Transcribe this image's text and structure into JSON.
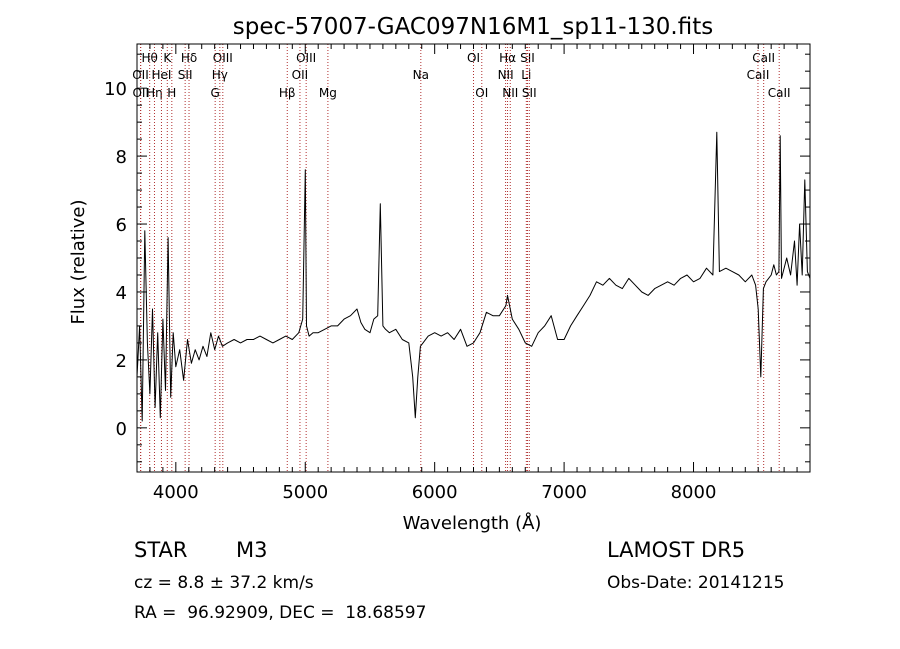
{
  "chart_data": {
    "type": "line",
    "title": "spec-57007-GAC097N16M1_sp11-130.fits",
    "xlabel": "Wavelength (Å)",
    "ylabel": "Flux (relative)",
    "xlim": [
      3700,
      8900
    ],
    "ylim": [
      -1.3,
      11.3
    ],
    "x_ticks": [
      4000,
      5000,
      6000,
      7000,
      8000
    ],
    "y_ticks": [
      0,
      2,
      4,
      6,
      8,
      10
    ],
    "grid": false,
    "spectrum": {
      "x": [
        3700,
        3720,
        3740,
        3760,
        3780,
        3800,
        3820,
        3840,
        3860,
        3880,
        3900,
        3920,
        3940,
        3960,
        3980,
        4000,
        4030,
        4060,
        4090,
        4120,
        4150,
        4180,
        4210,
        4240,
        4270,
        4300,
        4330,
        4360,
        4400,
        4450,
        4500,
        4550,
        4600,
        4650,
        4700,
        4750,
        4800,
        4850,
        4900,
        4950,
        4980,
        5000,
        5010,
        5030,
        5060,
        5100,
        5150,
        5200,
        5250,
        5300,
        5350,
        5400,
        5430,
        5460,
        5500,
        5530,
        5560,
        5580,
        5600,
        5620,
        5650,
        5700,
        5750,
        5800,
        5830,
        5850,
        5870,
        5890,
        5910,
        5950,
        6000,
        6050,
        6100,
        6150,
        6200,
        6250,
        6300,
        6350,
        6400,
        6450,
        6500,
        6550,
        6563,
        6600,
        6650,
        6700,
        6750,
        6800,
        6850,
        6900,
        6950,
        7000,
        7050,
        7100,
        7150,
        7200,
        7250,
        7300,
        7350,
        7400,
        7450,
        7500,
        7550,
        7600,
        7650,
        7700,
        7750,
        7800,
        7850,
        7900,
        7950,
        8000,
        8050,
        8100,
        8150,
        8180,
        8200,
        8250,
        8300,
        8350,
        8400,
        8450,
        8480,
        8500,
        8520,
        8540,
        8560,
        8600,
        8620,
        8640,
        8660,
        8670,
        8680,
        8700,
        8720,
        8750,
        8780,
        8800,
        8820,
        8840,
        8860,
        8880,
        8900
      ],
      "y": [
        1.5,
        3.0,
        0.2,
        5.8,
        2.5,
        1.0,
        3.5,
        0.6,
        2.8,
        0.3,
        3.2,
        1.1,
        5.6,
        0.9,
        2.8,
        1.8,
        2.3,
        1.4,
        2.6,
        1.9,
        2.3,
        2.0,
        2.4,
        2.1,
        2.8,
        2.3,
        2.7,
        2.4,
        2.5,
        2.6,
        2.5,
        2.6,
        2.6,
        2.7,
        2.6,
        2.5,
        2.6,
        2.7,
        2.6,
        2.8,
        3.2,
        7.6,
        3.0,
        2.7,
        2.8,
        2.8,
        2.9,
        3.0,
        3.0,
        3.2,
        3.3,
        3.5,
        3.1,
        2.9,
        2.8,
        3.2,
        3.3,
        6.6,
        3.0,
        2.9,
        2.8,
        2.9,
        2.6,
        2.5,
        1.5,
        0.3,
        1.5,
        2.4,
        2.5,
        2.7,
        2.8,
        2.7,
        2.8,
        2.6,
        2.9,
        2.4,
        2.5,
        2.8,
        3.4,
        3.3,
        3.3,
        3.6,
        3.9,
        3.2,
        2.9,
        2.5,
        2.4,
        2.8,
        3.0,
        3.3,
        2.6,
        2.6,
        3.0,
        3.3,
        3.6,
        3.9,
        4.3,
        4.2,
        4.4,
        4.2,
        4.1,
        4.4,
        4.2,
        4.0,
        3.9,
        4.1,
        4.2,
        4.3,
        4.2,
        4.4,
        4.5,
        4.3,
        4.4,
        4.7,
        4.5,
        8.7,
        4.6,
        4.7,
        4.6,
        4.5,
        4.3,
        4.5,
        4.2,
        3.5,
        1.5,
        4.1,
        4.3,
        4.5,
        4.8,
        4.5,
        4.6,
        8.6,
        4.4,
        4.7,
        5.0,
        4.5,
        5.5,
        4.2,
        6.0,
        4.5,
        7.3,
        4.6,
        4.4
      ]
    },
    "line_marks": [
      {
        "label": "Hθ",
        "x": 3798,
        "row": 1
      },
      {
        "label": "OII",
        "x": 3727,
        "row": 2
      },
      {
        "label": "OII",
        "x": 3729,
        "row": 3
      },
      {
        "label": "Hη",
        "x": 3835,
        "row": 3
      },
      {
        "label": "K",
        "x": 3934,
        "row": 1
      },
      {
        "label": "HeI",
        "x": 3889,
        "row": 2
      },
      {
        "label": "H",
        "x": 3969,
        "row": 3
      },
      {
        "label": "Hδ",
        "x": 4102,
        "row": 1
      },
      {
        "label": "SII",
        "x": 4072,
        "row": 2
      },
      {
        "label": "OIII",
        "x": 4363,
        "row": 1
      },
      {
        "label": "Hγ",
        "x": 4340,
        "row": 2
      },
      {
        "label": "G",
        "x": 4304,
        "row": 3
      },
      {
        "label": "OIII",
        "x": 5007,
        "row": 1
      },
      {
        "label": "OII",
        "x": 4959,
        "row": 2
      },
      {
        "label": "Hβ",
        "x": 4861,
        "row": 3
      },
      {
        "label": "Mg",
        "x": 5175,
        "row": 3
      },
      {
        "label": "Na",
        "x": 5893,
        "row": 2
      },
      {
        "label": "OI",
        "x": 6300,
        "row": 1
      },
      {
        "label": "OI",
        "x": 6364,
        "row": 3
      },
      {
        "label": "Hα",
        "x": 6563,
        "row": 1
      },
      {
        "label": "NII",
        "x": 6548,
        "row": 2
      },
      {
        "label": "NII",
        "x": 6584,
        "row": 3
      },
      {
        "label": "SII",
        "x": 6717,
        "row": 1
      },
      {
        "label": "Li",
        "x": 6708,
        "row": 2
      },
      {
        "label": "SII",
        "x": 6731,
        "row": 3
      },
      {
        "label": "CaII",
        "x": 8542,
        "row": 1
      },
      {
        "label": "CaII",
        "x": 8498,
        "row": 2
      },
      {
        "label": "CaII",
        "x": 8662,
        "row": 3
      }
    ]
  },
  "info": {
    "object_type": "STAR",
    "subclass": "M3",
    "survey": "LAMOST DR5",
    "redshift": "cz = 8.8 ± 37.2 km/s",
    "obs_date": "Obs-Date: 20141215",
    "coords": "RA =  96.92909, DEC =  18.68597"
  }
}
